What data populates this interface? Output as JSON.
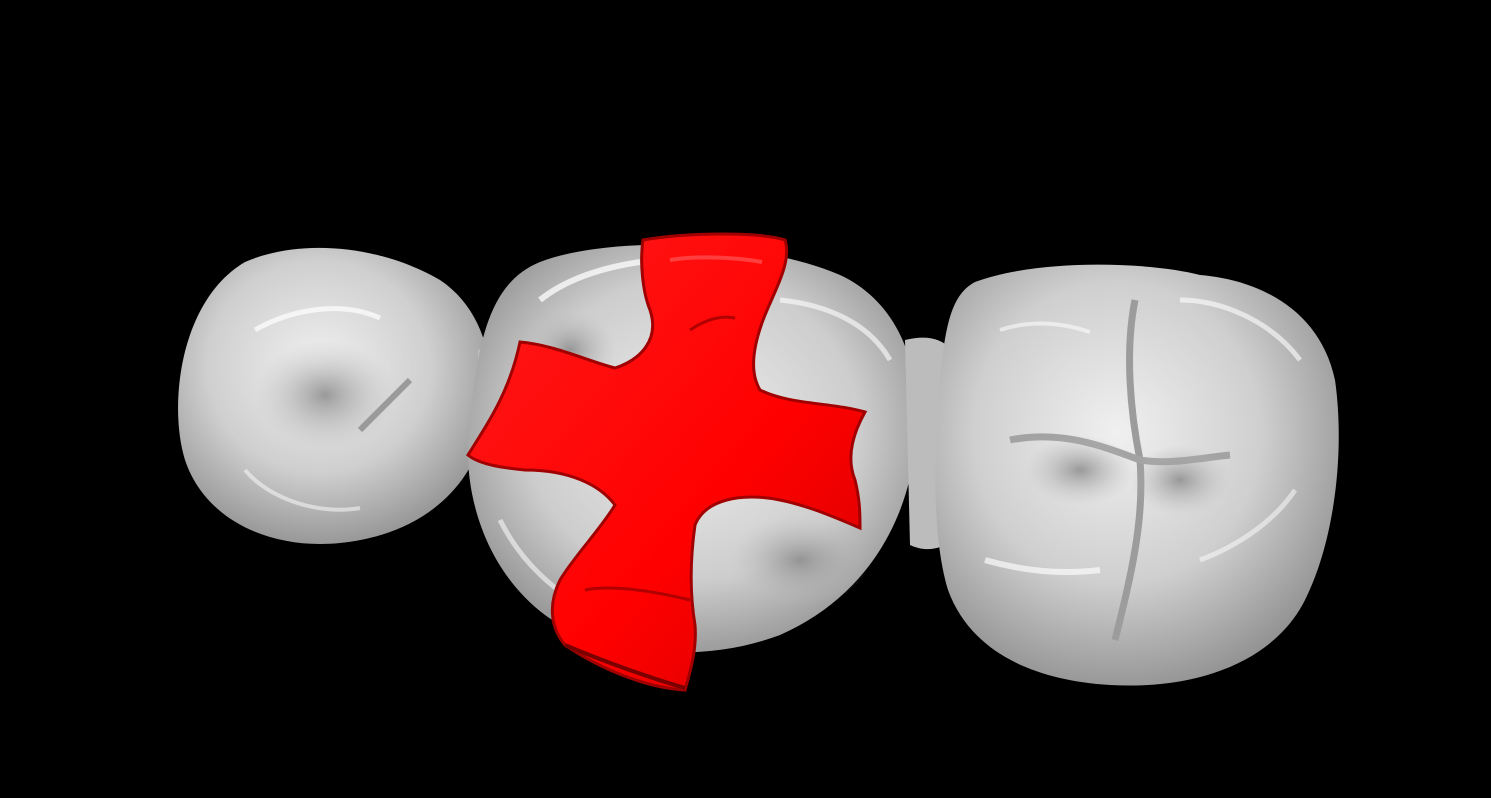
{
  "scene": {
    "background_color": "#000000",
    "tooth_color": "#c8c8c8",
    "tooth_highlight": "#f4f4f4",
    "tooth_shadow": "#8a8a8a",
    "restoration_color": "#ff0000",
    "restoration_edge_color": "#9a0000",
    "objects": [
      {
        "name": "premolar-tooth",
        "icon": "tooth-icon"
      },
      {
        "name": "prepared-molar-tooth",
        "icon": "tooth-icon"
      },
      {
        "name": "molar-tooth",
        "icon": "tooth-icon"
      },
      {
        "name": "cross-shaped-inlay",
        "icon": "cross-icon"
      }
    ]
  }
}
